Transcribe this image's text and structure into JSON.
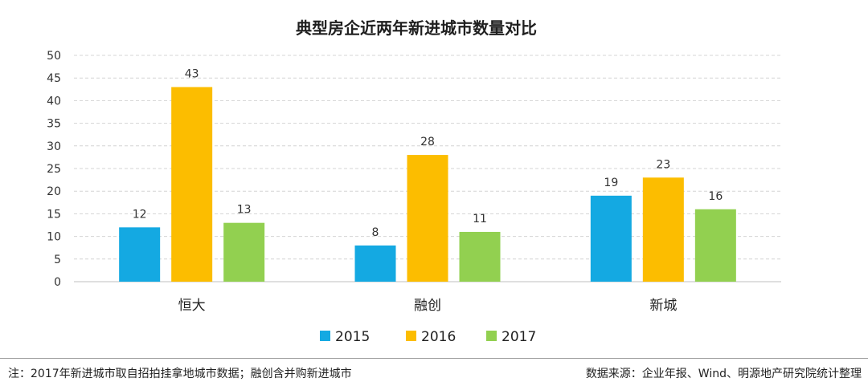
{
  "chart_data": {
    "type": "bar",
    "title": "典型房企近两年新进城市数量对比",
    "categories": [
      "恒大",
      "融创",
      "新城"
    ],
    "series": [
      {
        "name": "2015",
        "color": "#14a9e2",
        "values": [
          12,
          8,
          19
        ]
      },
      {
        "name": "2016",
        "color": "#fcbd00",
        "values": [
          43,
          28,
          23
        ]
      },
      {
        "name": "2017",
        "color": "#92d050",
        "values": [
          13,
          11,
          16
        ]
      }
    ],
    "ylim": [
      0,
      50
    ],
    "yticks": [
      0,
      5,
      10,
      15,
      20,
      25,
      30,
      35,
      40,
      45,
      50
    ],
    "grid": true,
    "legend_position": "bottom"
  },
  "footer": {
    "note": "注：2017年新进城市取自招拍挂拿地城市数据；融创含并购新进城市",
    "source": "数据来源：企业年报、Wind、明源地产研究院统计整理"
  }
}
